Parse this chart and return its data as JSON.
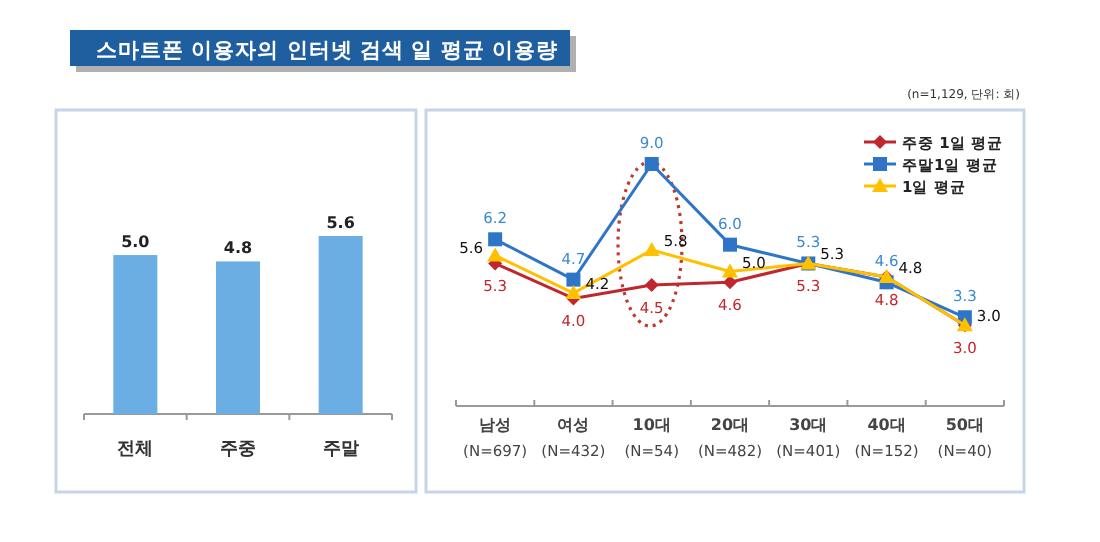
{
  "chart_data": [
    {
      "type": "bar",
      "title": "스마트폰 이용자의 인터넷 검색 일 평균 이용량",
      "categories": [
        "전체",
        "주중",
        "주말"
      ],
      "values": [
        5.0,
        4.8,
        5.6
      ],
      "value_labels": [
        "5.0",
        "4.8",
        "5.6"
      ],
      "color": "#6aaee3"
    },
    {
      "type": "line",
      "annotations": [
        "(n=1,129, 단위: 회)"
      ],
      "categories": [
        "남성\n(N=697)",
        "여성\n(N=432)",
        "10대\n(N=54)",
        "20대\n(N=482)",
        "30대\n(N=401)",
        "40대\n(N=152)",
        "50대\n(N=40)"
      ],
      "legend": "top right",
      "series": [
        {
          "name": "주중 1일 평균",
          "color": "#c0272d",
          "marker": "diamond",
          "values": [
            5.3,
            4.0,
            4.5,
            4.6,
            5.3,
            4.8,
            3.0
          ],
          "value_labels": [
            "5.3",
            "4.0",
            "4.5",
            "4.6",
            "5.3",
            "4.8",
            "3.0"
          ]
        },
        {
          "name": "주말1일 평균",
          "color": "#2e75c8",
          "marker": "square",
          "values": [
            6.2,
            4.7,
            9.0,
            6.0,
            5.3,
            4.6,
            3.3
          ],
          "value_labels": [
            "6.2",
            "4.7",
            "9.0",
            "6.0",
            "5.3",
            "4.6",
            "3.3"
          ]
        },
        {
          "name": "1일 평균",
          "color": "#ffc000",
          "marker": "triangle",
          "values": [
            5.6,
            4.2,
            5.8,
            5.0,
            5.3,
            4.8,
            3.0
          ],
          "value_labels": [
            "5.6",
            "4.2",
            "5.8",
            "5.0",
            "5.3",
            "4.8",
            "3.0"
          ]
        }
      ]
    }
  ]
}
